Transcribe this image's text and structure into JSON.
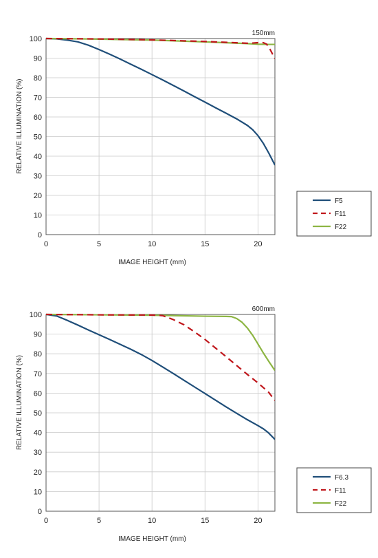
{
  "chart_data": [
    {
      "type": "line",
      "title": "150mm",
      "xlabel": "IMAGE HEIGHT (mm)",
      "ylabel": "RELATIVE ILLUMINATION (%)",
      "xlim": [
        0,
        21.6
      ],
      "ylim": [
        0,
        100
      ],
      "xticks": [
        0,
        5,
        10,
        15,
        20
      ],
      "yticks": [
        0,
        10,
        20,
        30,
        40,
        50,
        60,
        70,
        80,
        90,
        100
      ],
      "grid": true,
      "legend_position": "right",
      "series": [
        {
          "name": "F5",
          "color": "#1f4e79",
          "dash": "solid",
          "x": [
            0,
            1,
            2,
            3,
            4,
            5,
            6,
            7,
            8,
            9,
            10,
            11,
            12,
            13,
            14,
            15,
            16,
            17,
            18,
            19,
            19.5,
            20,
            20.5,
            21,
            21.6
          ],
          "y": [
            100,
            99.8,
            99.2,
            98.3,
            96.6,
            94.4,
            92,
            89.5,
            86.9,
            84.3,
            81.6,
            78.9,
            76.1,
            73.3,
            70.4,
            67.6,
            64.7,
            61.9,
            59,
            55.7,
            53.5,
            50.5,
            46.6,
            41.8,
            35.5
          ]
        },
        {
          "name": "F11",
          "color": "#c0171c",
          "dash": "dashed",
          "x": [
            0,
            5,
            10,
            15,
            19,
            19.5,
            20,
            20.5,
            20.8,
            21,
            21.2,
            21.4,
            21.6
          ],
          "y": [
            100,
            99.8,
            99.3,
            98.5,
            97.6,
            97.7,
            97.9,
            97.9,
            97.2,
            95.8,
            93.9,
            91.8,
            89.7
          ]
        },
        {
          "name": "F22",
          "color": "#8db543",
          "dash": "solid",
          "x": [
            0,
            2,
            5,
            10,
            15,
            19,
            20,
            21,
            21.6
          ],
          "y": [
            100,
            99.9,
            99.7,
            99.2,
            98.3,
            97.4,
            97.1,
            97,
            97
          ]
        }
      ]
    },
    {
      "type": "line",
      "title": "600mm",
      "xlabel": "IMAGE HEIGHT (mm)",
      "ylabel": "RELATIVE ILLUMINATION (%)",
      "xlim": [
        0,
        21.6
      ],
      "ylim": [
        0,
        100
      ],
      "xticks": [
        0,
        5,
        10,
        15,
        20
      ],
      "yticks": [
        0,
        10,
        20,
        30,
        40,
        50,
        60,
        70,
        80,
        90,
        100
      ],
      "grid": true,
      "legend_position": "right",
      "series": [
        {
          "name": "F6.3",
          "color": "#1f4e79",
          "dash": "solid",
          "x": [
            0,
            1,
            2,
            3,
            4,
            5,
            6,
            7,
            8,
            9,
            10,
            11,
            12,
            13,
            14,
            15,
            16,
            17,
            18,
            19,
            20,
            20.5,
            21,
            21.6
          ],
          "y": [
            100,
            99.2,
            97,
            94.6,
            92.1,
            89.7,
            87.3,
            84.8,
            82.3,
            79.6,
            76.6,
            73.3,
            70,
            66.6,
            63.2,
            59.8,
            56.4,
            53,
            49.7,
            46.5,
            43.5,
            41.9,
            39.8,
            36.5
          ]
        },
        {
          "name": "F11",
          "color": "#c0171c",
          "dash": "dashed",
          "x": [
            0,
            5,
            10,
            11,
            12,
            13,
            14,
            15,
            16,
            17,
            18,
            19,
            20,
            21,
            21.6
          ],
          "y": [
            100,
            99.8,
            99.7,
            99.4,
            97.4,
            94.8,
            91.2,
            87.3,
            82.9,
            78.5,
            74,
            69.5,
            65.2,
            60.5,
            56.3
          ]
        },
        {
          "name": "F22",
          "color": "#8db543",
          "dash": "solid",
          "x": [
            0,
            5,
            10,
            15,
            17,
            17.5,
            18,
            18.5,
            19,
            19.5,
            20,
            20.5,
            21,
            21.6
          ],
          "y": [
            100,
            99.8,
            99.6,
            99.1,
            99,
            98.9,
            97.9,
            96,
            93.1,
            89.4,
            85,
            80.5,
            76.3,
            71.5
          ]
        }
      ]
    }
  ]
}
